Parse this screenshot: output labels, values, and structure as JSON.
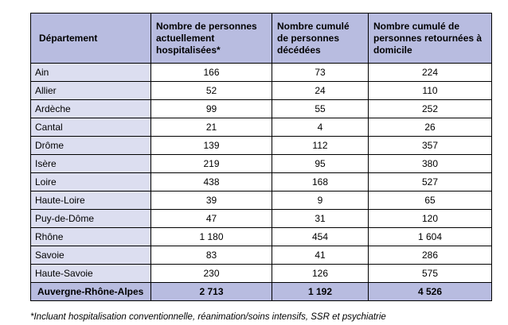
{
  "table": {
    "headers": [
      "Département",
      "Nombre de personnes actuellement hospitalisées*",
      "Nombre cumulé de personnes décédées",
      "Nombre cumulé de personnes retournées à domicile"
    ],
    "rows": [
      [
        "Ain",
        "166",
        "73",
        "224"
      ],
      [
        "Allier",
        "52",
        "24",
        "110"
      ],
      [
        "Ardèche",
        "99",
        "55",
        "252"
      ],
      [
        "Cantal",
        "21",
        "4",
        "26"
      ],
      [
        "Drôme",
        "139",
        "112",
        "357"
      ],
      [
        "Isère",
        "219",
        "95",
        "380"
      ],
      [
        "Loire",
        "438",
        "168",
        "527"
      ],
      [
        "Haute-Loire",
        "39",
        "9",
        "65"
      ],
      [
        "Puy-de-Dôme",
        "47",
        "31",
        "120"
      ],
      [
        "Rhône",
        "1 180",
        "454",
        "1 604"
      ],
      [
        "Savoie",
        "83",
        "41",
        "286"
      ],
      [
        "Haute-Savoie",
        "230",
        "126",
        "575"
      ]
    ],
    "total": [
      "Auvergne-Rhône-Alpes",
      "2 713",
      "1 192",
      "4 526"
    ]
  },
  "footnote": "*Incluant hospitalisation conventionnelle, réanimation/soins intensifs, SSR et psychiatrie",
  "colors": {
    "header_bg": "#b8bce0",
    "dept_cell_bg": "#dcdef0",
    "border": "#000000"
  }
}
